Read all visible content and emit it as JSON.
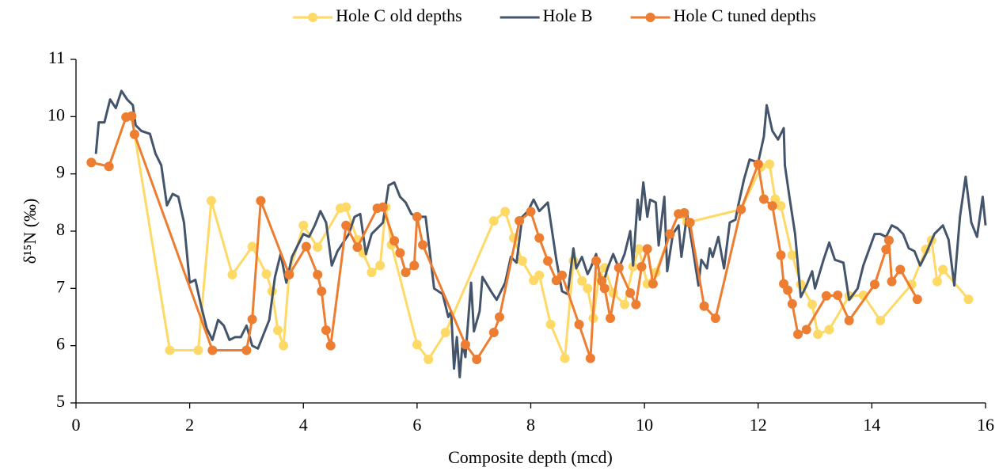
{
  "chart_data": {
    "type": "line",
    "x_label": "Composite depth (mcd)",
    "y_label": "δ¹⁵N (‰)",
    "xlim": [
      0,
      16
    ],
    "xticks": [
      0,
      2,
      4,
      6,
      8,
      10,
      12,
      14,
      16
    ],
    "ylim": [
      5,
      11
    ],
    "yticks": [
      5,
      6,
      7,
      8,
      9,
      10,
      11
    ],
    "grid": false,
    "legend": "top",
    "series": [
      {
        "name": "Hole C old depths",
        "color": "#FFD966",
        "markers": true,
        "x": [
          0.27,
          0.58,
          0.88,
          0.98,
          1.03,
          1.65,
          2.15,
          2.38,
          2.75,
          3.1,
          3.35,
          3.45,
          3.55,
          3.65,
          3.75,
          4.0,
          4.25,
          4.65,
          4.75,
          4.95,
          5.05,
          5.2,
          5.35,
          5.45,
          5.55,
          6.0,
          6.2,
          6.5,
          7.35,
          7.55,
          7.7,
          7.85,
          8.05,
          8.15,
          8.35,
          8.6,
          8.75,
          8.9,
          9.0,
          9.1,
          9.2,
          9.3,
          9.45,
          9.65,
          9.8,
          9.9,
          10.05,
          10.2,
          10.45,
          10.6,
          10.75,
          11.7,
          12.05,
          12.2,
          12.3,
          12.4,
          12.6,
          12.75,
          12.95,
          13.05,
          13.25,
          13.6,
          13.85,
          14.15,
          14.7,
          14.95,
          15.05,
          15.15,
          15.25,
          15.7
        ],
        "values": [
          9.2,
          9.13,
          9.99,
          10.01,
          9.69,
          5.92,
          5.92,
          8.53,
          7.24,
          7.73,
          7.25,
          6.95,
          6.27,
          6.0,
          7.27,
          8.1,
          7.72,
          8.4,
          8.42,
          7.85,
          7.62,
          7.28,
          7.4,
          8.42,
          7.76,
          6.02,
          5.76,
          6.23,
          8.18,
          8.34,
          7.88,
          7.48,
          7.14,
          7.23,
          6.37,
          5.78,
          7.48,
          7.13,
          7.0,
          6.48,
          7.2,
          7.36,
          6.92,
          6.72,
          7.38,
          7.69,
          7.08,
          7.28,
          7.95,
          8.3,
          8.15,
          8.38,
          9.12,
          9.17,
          8.56,
          8.44,
          7.58,
          7.07,
          6.72,
          6.2,
          6.28,
          6.87,
          6.88,
          6.44,
          7.07,
          7.68,
          7.84,
          7.12,
          7.33,
          6.81
        ]
      },
      {
        "name": "Hole B",
        "color": "#44546A",
        "markers": false,
        "x": [
          0.35,
          0.4,
          0.5,
          0.6,
          0.7,
          0.8,
          0.9,
          1.0,
          1.05,
          1.15,
          1.3,
          1.4,
          1.5,
          1.6,
          1.7,
          1.8,
          1.9,
          2.0,
          2.1,
          2.2,
          2.3,
          2.4,
          2.5,
          2.6,
          2.7,
          2.8,
          2.9,
          3.0,
          3.1,
          3.2,
          3.4,
          3.5,
          3.6,
          3.7,
          3.8,
          3.9,
          4.0,
          4.1,
          4.2,
          4.3,
          4.4,
          4.5,
          4.6,
          4.7,
          4.8,
          4.9,
          5.0,
          5.1,
          5.2,
          5.3,
          5.4,
          5.5,
          5.6,
          5.7,
          5.8,
          5.9,
          6.0,
          6.15,
          6.3,
          6.45,
          6.55,
          6.6,
          6.65,
          6.7,
          6.75,
          6.8,
          6.85,
          6.95,
          7.0,
          7.1,
          7.15,
          7.3,
          7.4,
          7.55,
          7.65,
          7.75,
          7.85,
          7.95,
          8.05,
          8.15,
          8.25,
          8.3,
          8.45,
          8.55,
          8.65,
          8.75,
          8.8,
          8.9,
          9.0,
          9.05,
          9.15,
          9.25,
          9.35,
          9.45,
          9.55,
          9.65,
          9.75,
          9.8,
          9.88,
          9.92,
          9.98,
          10.05,
          10.1,
          10.2,
          10.25,
          10.35,
          10.4,
          10.5,
          10.6,
          10.65,
          10.75,
          10.85,
          10.95,
          11.0,
          11.1,
          11.15,
          11.2,
          11.3,
          11.4,
          11.5,
          11.6,
          11.65,
          11.75,
          11.85,
          12.0,
          12.1,
          12.15,
          12.25,
          12.35,
          12.45,
          12.47,
          12.55,
          12.65,
          12.75,
          12.85,
          12.95,
          13.0,
          13.15,
          13.25,
          13.35,
          13.5,
          13.6,
          13.75,
          13.85,
          14.05,
          14.15,
          14.25,
          14.35,
          14.45,
          14.55,
          14.65,
          14.75,
          14.85,
          14.95,
          15.1,
          15.25,
          15.35,
          15.45,
          15.55,
          15.65,
          15.75,
          15.85,
          15.95,
          16.0
        ],
        "values": [
          9.35,
          9.9,
          9.9,
          10.3,
          10.15,
          10.45,
          10.3,
          10.2,
          9.85,
          9.75,
          9.7,
          9.35,
          9.15,
          8.45,
          8.65,
          8.6,
          8.15,
          7.1,
          7.15,
          6.7,
          6.3,
          6.1,
          6.45,
          6.35,
          6.1,
          6.15,
          6.15,
          6.35,
          6.0,
          5.95,
          6.45,
          7.2,
          7.6,
          7.1,
          7.55,
          7.75,
          7.95,
          7.9,
          8.1,
          8.35,
          8.15,
          7.4,
          7.65,
          7.8,
          7.95,
          8.25,
          8.3,
          7.6,
          7.95,
          8.05,
          8.15,
          8.8,
          8.85,
          8.6,
          8.5,
          8.3,
          8.25,
          8.25,
          7.0,
          6.9,
          6.5,
          6.6,
          5.6,
          6.15,
          5.45,
          6.05,
          5.8,
          7.1,
          6.25,
          6.6,
          7.2,
          6.95,
          6.8,
          7.1,
          7.55,
          7.45,
          8.25,
          8.35,
          8.55,
          8.35,
          8.45,
          8.5,
          7.5,
          6.95,
          6.9,
          7.7,
          7.35,
          7.55,
          7.25,
          7.35,
          7.6,
          7.0,
          7.35,
          7.6,
          7.35,
          7.6,
          8.0,
          7.4,
          8.55,
          8.2,
          8.85,
          8.25,
          8.55,
          8.5,
          7.75,
          8.6,
          7.3,
          7.95,
          8.1,
          7.55,
          8.3,
          7.7,
          7.05,
          7.5,
          7.35,
          7.7,
          7.55,
          7.9,
          7.35,
          8.15,
          8.2,
          8.45,
          8.9,
          9.25,
          9.2,
          9.65,
          10.2,
          9.75,
          9.6,
          9.8,
          9.15,
          8.6,
          7.95,
          6.85,
          7.05,
          7.3,
          7.0,
          7.5,
          7.8,
          7.5,
          7.45,
          6.8,
          7.0,
          7.4,
          7.95,
          7.95,
          7.9,
          8.1,
          8.05,
          7.95,
          7.7,
          7.65,
          7.4,
          7.6,
          7.95,
          8.1,
          7.85,
          7.05,
          8.25,
          8.95,
          8.15,
          7.9,
          8.6,
          8.1
        ]
      },
      {
        "name": "Hole C tuned depths",
        "color": "#ED7D31",
        "markers": true,
        "x": [
          0.27,
          0.58,
          0.88,
          0.98,
          1.03,
          2.4,
          3.0,
          3.1,
          3.25,
          3.75,
          4.05,
          4.25,
          4.32,
          4.4,
          4.48,
          4.75,
          4.95,
          5.3,
          5.4,
          5.6,
          5.7,
          5.8,
          5.95,
          6.0,
          6.1,
          6.85,
          7.05,
          7.35,
          7.45,
          7.8,
          8.0,
          8.15,
          8.3,
          8.45,
          8.55,
          8.85,
          9.05,
          9.15,
          9.25,
          9.3,
          9.4,
          9.55,
          9.75,
          9.85,
          9.95,
          10.05,
          10.15,
          10.45,
          10.6,
          10.7,
          10.8,
          11.05,
          11.25,
          11.7,
          12.0,
          12.1,
          12.25,
          12.4,
          12.45,
          12.52,
          12.6,
          12.7,
          12.85,
          13.2,
          13.4,
          13.6,
          14.05,
          14.25,
          14.3,
          14.35,
          14.5,
          14.8
        ],
        "values": [
          9.2,
          9.13,
          9.99,
          10.01,
          9.69,
          5.92,
          5.92,
          6.46,
          8.53,
          7.24,
          7.73,
          7.24,
          6.95,
          6.27,
          6.0,
          8.1,
          7.72,
          8.4,
          8.42,
          7.83,
          7.62,
          7.28,
          7.4,
          8.25,
          7.76,
          6.02,
          5.76,
          6.23,
          6.5,
          8.18,
          8.34,
          7.88,
          7.48,
          7.14,
          7.23,
          6.37,
          5.78,
          7.48,
          7.13,
          7.0,
          6.48,
          7.36,
          6.92,
          6.72,
          7.38,
          7.69,
          7.08,
          7.95,
          8.3,
          8.32,
          8.15,
          6.69,
          6.48,
          8.38,
          9.17,
          8.56,
          8.44,
          7.58,
          7.08,
          6.97,
          6.73,
          6.2,
          6.28,
          6.87,
          6.88,
          6.44,
          7.07,
          7.68,
          7.84,
          7.12,
          7.33,
          6.81
        ]
      }
    ]
  }
}
